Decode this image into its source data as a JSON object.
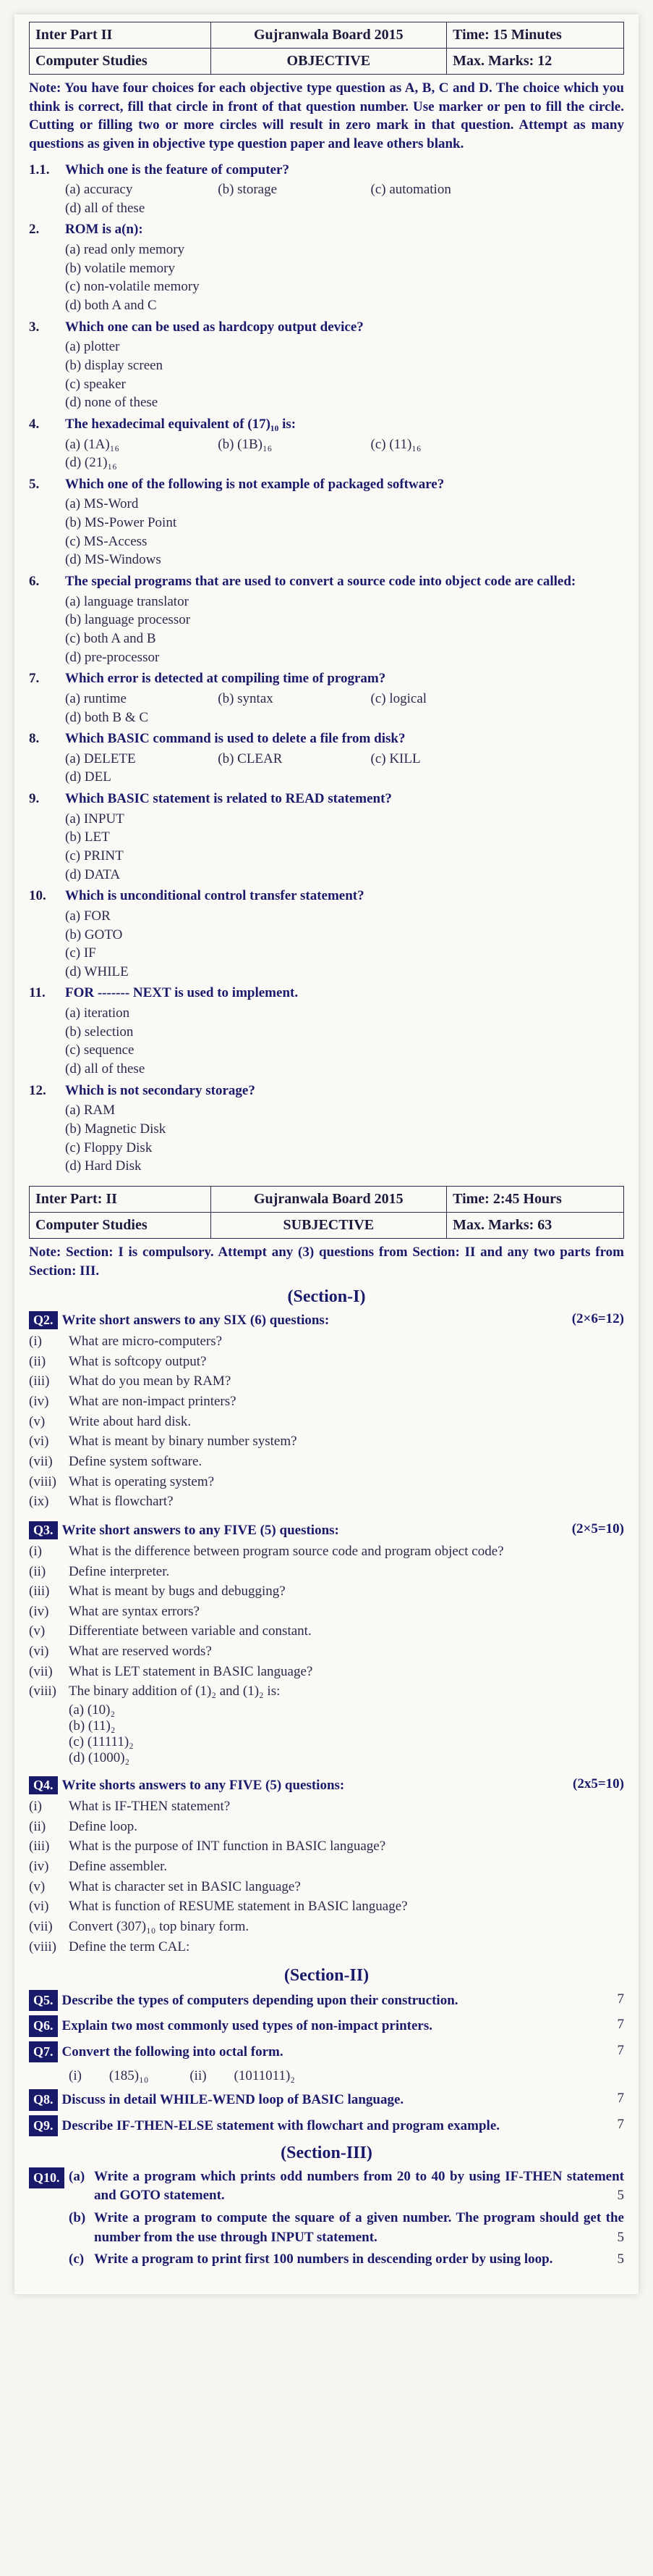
{
  "objHeader": {
    "r1c1": "Inter Part II",
    "r1c2": "Gujranwala Board 2015",
    "r1c3": "Time: 15 Minutes",
    "r2c1": "Computer Studies",
    "r2c2": "OBJECTIVE",
    "r2c3": "Max. Marks: 12"
  },
  "objNote": "Note: You have four choices for each objective type question as A, B, C and D. The choice which you think is correct, fill that circle in front of that question number. Use marker or pen to fill the circle. Cutting or filling two or more circles will result in zero mark in that question. Attempt as many questions as given in objective type question paper and leave others blank.",
  "mcq": [
    {
      "n": "1.1.",
      "q": "Which one is the feature of computer?",
      "layout": "4",
      "opts": [
        "(a) accuracy",
        "(b) storage",
        "(c) automation",
        "(d) all of these"
      ]
    },
    {
      "n": "2.",
      "q": "ROM is a(n):",
      "layout": "2",
      "opts": [
        "(a) read only memory",
        "(b) volatile memory",
        "(c) non-volatile memory",
        "(d) both A and C"
      ]
    },
    {
      "n": "3.",
      "q": "Which one can be used as hardcopy output device?",
      "layout": "2",
      "opts": [
        "(a) plotter",
        "(b) display screen",
        "(c) speaker",
        "(d) none of these"
      ]
    },
    {
      "n": "4.",
      "q": "The hexadecimal equivalent of (17)₁₀ is:",
      "layout": "4",
      "opts": [
        "(a) (1A)₁₆",
        "(b) (1B)₁₆",
        "(c) (11)₁₆",
        "(d) (21)₁₆"
      ]
    },
    {
      "n": "5.",
      "q": "Which one of the following is not example of packaged software?",
      "layout": "2",
      "opts": [
        "(a) MS-Word",
        "(b) MS-Power Point",
        "(c) MS-Access",
        "(d) MS-Windows"
      ]
    },
    {
      "n": "6.",
      "q": "The special programs that are used to convert a source code into object code are called:",
      "layout": "2",
      "opts": [
        "(a) language translator",
        "(b) language processor",
        "(c) both A and B",
        "(d) pre-processor"
      ]
    },
    {
      "n": "7.",
      "q": "Which error is detected at compiling time of program?",
      "layout": "4",
      "opts": [
        "(a) runtime",
        "(b) syntax",
        "(c) logical",
        "(d) both B & C"
      ]
    },
    {
      "n": "8.",
      "q": "Which BASIC command is used to delete a file from disk?",
      "layout": "4",
      "opts": [
        "(a) DELETE",
        "(b) CLEAR",
        "(c) KILL",
        "(d) DEL"
      ]
    },
    {
      "n": "9.",
      "q": "Which BASIC statement is related to READ statement?",
      "layout": "2",
      "opts": [
        "(a) INPUT",
        "(b) LET",
        "(c) PRINT",
        "(d) DATA"
      ]
    },
    {
      "n": "10.",
      "q": "Which is unconditional control transfer statement?",
      "layout": "2",
      "opts": [
        "(a) FOR",
        "(b) GOTO",
        "(c) IF",
        "(d) WHILE"
      ]
    },
    {
      "n": "11.",
      "q": "FOR ------- NEXT is used to implement.",
      "layout": "2",
      "opts": [
        "(a) iteration",
        "(b) selection",
        "(c) sequence",
        "(d) all of these"
      ]
    },
    {
      "n": "12.",
      "q": "Which is not secondary storage?",
      "layout": "2",
      "opts": [
        "(a) RAM",
        "(b) Magnetic Disk",
        "(c) Floppy Disk",
        "(d) Hard Disk"
      ]
    }
  ],
  "subjHeader": {
    "r1c1": "Inter Part: II",
    "r1c2": "Gujranwala Board 2015",
    "r1c3": "Time: 2:45 Hours",
    "r2c1": "Computer Studies",
    "r2c2": "SUBJECTIVE",
    "r2c3": "Max. Marks: 63"
  },
  "subjNote": "Note: Section: I is compulsory. Attempt any (3) questions from Section: II and any two parts from Section: III.",
  "sec1Title": "(Section-I)",
  "q2": {
    "box": "Q2.",
    "head": "Write short answers to any SIX (6) questions:",
    "marks": "(2×6=12)",
    "items": [
      {
        "n": "(i)",
        "t": "What are micro-computers?"
      },
      {
        "n": "(ii)",
        "t": "What is softcopy output?"
      },
      {
        "n": "(iii)",
        "t": "What do you mean by RAM?"
      },
      {
        "n": "(iv)",
        "t": "What are non-impact printers?"
      },
      {
        "n": "(v)",
        "t": "Write about hard disk."
      },
      {
        "n": "(vi)",
        "t": "What is meant by binary number system?"
      },
      {
        "n": "(vii)",
        "t": "Define system software."
      },
      {
        "n": "(viii)",
        "t": "What is operating system?"
      },
      {
        "n": "(ix)",
        "t": "What is flowchart?"
      }
    ]
  },
  "q3": {
    "box": "Q3.",
    "head": "Write short answers to any FIVE (5) questions:",
    "marks": "(2×5=10)",
    "items": [
      {
        "n": "(i)",
        "t": "What is the difference between program source code and program object code?"
      },
      {
        "n": "(ii)",
        "t": "Define interpreter."
      },
      {
        "n": "(iii)",
        "t": "What is meant by bugs and debugging?"
      },
      {
        "n": "(iv)",
        "t": "What are syntax errors?"
      },
      {
        "n": "(v)",
        "t": "Differentiate between variable and constant."
      },
      {
        "n": "(vi)",
        "t": "What are reserved words?"
      },
      {
        "n": "(vii)",
        "t": "What is LET statement in BASIC language?"
      },
      {
        "n": "(viii)",
        "t": "The binary addition of (1)₂ and (1)₂ is:"
      }
    ],
    "viiiOpts": [
      "(a) (10)₂",
      "(b) (11)₂",
      "(c) (11111)₂",
      "(d) (1000)₂"
    ]
  },
  "q4": {
    "box": "Q4.",
    "head": "Write shorts answers to any FIVE (5) questions:",
    "marks": "(2x5=10)",
    "items": [
      {
        "n": "(i)",
        "t": "What is IF-THEN statement?"
      },
      {
        "n": "(ii)",
        "t": "Define loop."
      },
      {
        "n": "(iii)",
        "t": "What is the purpose of INT function in BASIC language?"
      },
      {
        "n": "(iv)",
        "t": "Define assembler."
      },
      {
        "n": "(v)",
        "t": "What is character set in BASIC language?"
      },
      {
        "n": "(vi)",
        "t": "What is function of RESUME statement in BASIC language?"
      },
      {
        "n": "(vii)",
        "t": "Convert (307)₁₀ top binary form."
      },
      {
        "n": "(viii)",
        "t": "Define the term CAL:"
      }
    ]
  },
  "sec2Title": "(Section-II)",
  "longQ": [
    {
      "box": "Q5.",
      "t": "Describe the types of computers depending upon their construction.",
      "m": "7"
    },
    {
      "box": "Q6.",
      "t": "Explain two most commonly used types of non-impact printers.",
      "m": "7"
    },
    {
      "box": "Q7.",
      "t": "Convert the following into octal form.",
      "m": "7",
      "sub": "(i)  (185)₁₀   (ii)  (1011011)₂"
    },
    {
      "box": "Q8.",
      "t": "Discuss in detail WHILE-WEND loop of BASIC language.",
      "m": "7"
    },
    {
      "box": "Q9.",
      "t": "Describe IF-THEN-ELSE statement with flowchart and program example.",
      "m": "7"
    }
  ],
  "sec3Title": "(Section-III)",
  "q10": {
    "box": "Q10.",
    "parts": [
      {
        "l": "(a)",
        "t": "Write a program which prints odd numbers from 20 to 40 by using IF-THEN statement and GOTO statement.",
        "m": "5"
      },
      {
        "l": "(b)",
        "t": "Write a program to compute the square of a given number. The program should get the number from the use through INPUT statement.",
        "m": "5"
      },
      {
        "l": "(c)",
        "t": "Write a program to print first 100 numbers in descending order by using loop.",
        "m": "5"
      }
    ]
  }
}
